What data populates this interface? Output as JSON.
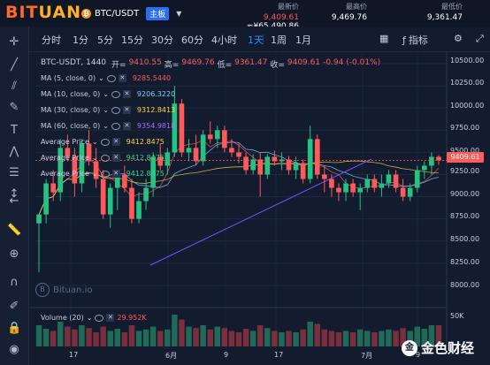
{
  "brand": {
    "logo_part1": "BIT",
    "logo_part2": "UAN"
  },
  "market": {
    "pair": "BTC/USDT",
    "badge": "主板",
    "coin_letter": "₿"
  },
  "stats": [
    {
      "label": "最新价",
      "value_main": "9,409.61",
      "value_sub": "≈¥65,490.86"
    },
    {
      "label": "最高价",
      "value": "9,469.76"
    },
    {
      "label": "最低价",
      "value": "9,361.47"
    }
  ],
  "timeframes": [
    "分时",
    "1分",
    "5分",
    "15分",
    "30分",
    "60分",
    "4小时",
    "1天",
    "1周",
    "1月"
  ],
  "active_timeframe": "1天",
  "toolbar_right": {
    "indicator_label": "指标"
  },
  "chart_header": {
    "symbol": "BTC-USDT, 1440",
    "open_label": "开=",
    "open": "9410.55",
    "high_label": "高=",
    "high": "9469.76",
    "low_label": "低=",
    "low": "9361.47",
    "close_label": "收=",
    "close": "9409.61",
    "change": "-0.94 (-0.01%)"
  },
  "indicators": [
    {
      "label": "MA (5, close, 0)",
      "value": "9285.5440",
      "color": "#ff5a5a"
    },
    {
      "label": "MA (10, close, 0)",
      "value": "9206.3220",
      "color": "#7fd0ff"
    },
    {
      "label": "MA (30, close, 0)",
      "value": "9312.8413",
      "color": "#ffd040"
    },
    {
      "label": "MA (60, close, 0)",
      "value": "9354.9818",
      "color": "#a070ff"
    },
    {
      "label": "Average Price",
      "value": "9412.8475",
      "color": "#ffd040"
    },
    {
      "label": "Average Price",
      "value": "9412.8475",
      "color": "#39d48a"
    },
    {
      "label": "Average Price",
      "value": "9412.8475",
      "color": "#39d48a"
    }
  ],
  "price_axis": [
    "10500.00",
    "10250.00",
    "10000.00",
    "9750.00",
    "9500.00",
    "9250.00",
    "9000.00",
    "8750.00",
    "8500.00",
    "8250.00",
    "8000.00"
  ],
  "current_price_tag": "9409.61",
  "volume": {
    "label": "Volume (20)",
    "value": "29.952K",
    "axis_label": "50K"
  },
  "x_axis": [
    "17",
    "6月",
    "9",
    "17",
    "7月",
    "9"
  ],
  "watermark": "Bituan.io",
  "footer_brand": "金色财经",
  "chart_data": {
    "type": "candlestick",
    "ylim": [
      7880,
      10620
    ],
    "candles": [
      {
        "o": 8700,
        "h": 8800,
        "l": 8150,
        "c": 8800
      },
      {
        "o": 8800,
        "h": 9200,
        "l": 8700,
        "c": 9150
      },
      {
        "o": 9150,
        "h": 9300,
        "l": 8950,
        "c": 9050
      },
      {
        "o": 9050,
        "h": 9650,
        "l": 8950,
        "c": 9550
      },
      {
        "o": 9550,
        "h": 9700,
        "l": 9400,
        "c": 9450
      },
      {
        "o": 9450,
        "h": 9550,
        "l": 9000,
        "c": 9150
      },
      {
        "o": 9150,
        "h": 9650,
        "l": 9050,
        "c": 9600
      },
      {
        "o": 9600,
        "h": 9750,
        "l": 9350,
        "c": 9400
      },
      {
        "o": 9400,
        "h": 9550,
        "l": 9100,
        "c": 9200
      },
      {
        "o": 9200,
        "h": 9300,
        "l": 8750,
        "c": 8800
      },
      {
        "o": 8800,
        "h": 9150,
        "l": 8650,
        "c": 9100
      },
      {
        "o": 9100,
        "h": 9300,
        "l": 8850,
        "c": 9250
      },
      {
        "o": 9250,
        "h": 9350,
        "l": 9050,
        "c": 9100
      },
      {
        "o": 9100,
        "h": 9200,
        "l": 8700,
        "c": 8750
      },
      {
        "o": 8750,
        "h": 9050,
        "l": 8700,
        "c": 8950
      },
      {
        "o": 8950,
        "h": 9200,
        "l": 8850,
        "c": 9100
      },
      {
        "o": 9100,
        "h": 9500,
        "l": 9000,
        "c": 9450
      },
      {
        "o": 9450,
        "h": 9600,
        "l": 9300,
        "c": 9350
      },
      {
        "o": 9350,
        "h": 9550,
        "l": 9250,
        "c": 9500
      },
      {
        "o": 9500,
        "h": 10250,
        "l": 9450,
        "c": 10050
      },
      {
        "o": 10050,
        "h": 10100,
        "l": 9450,
        "c": 9500
      },
      {
        "o": 9500,
        "h": 9650,
        "l": 9400,
        "c": 9550
      },
      {
        "o": 9550,
        "h": 9700,
        "l": 9350,
        "c": 9400
      },
      {
        "o": 9400,
        "h": 9750,
        "l": 9350,
        "c": 9700
      },
      {
        "o": 9700,
        "h": 9850,
        "l": 9600,
        "c": 9650
      },
      {
        "o": 9650,
        "h": 9800,
        "l": 9550,
        "c": 9750
      },
      {
        "o": 9750,
        "h": 9800,
        "l": 9500,
        "c": 9550
      },
      {
        "o": 9550,
        "h": 9650,
        "l": 9450,
        "c": 9500
      },
      {
        "o": 9500,
        "h": 9600,
        "l": 9380,
        "c": 9450
      },
      {
        "o": 9450,
        "h": 9500,
        "l": 9250,
        "c": 9300
      },
      {
        "o": 9300,
        "h": 9480,
        "l": 9250,
        "c": 9420
      },
      {
        "o": 9420,
        "h": 9500,
        "l": 9000,
        "c": 9250
      },
      {
        "o": 9250,
        "h": 9480,
        "l": 9200,
        "c": 9450
      },
      {
        "o": 9450,
        "h": 9520,
        "l": 9350,
        "c": 9400
      },
      {
        "o": 9400,
        "h": 9500,
        "l": 9300,
        "c": 9420
      },
      {
        "o": 9420,
        "h": 9460,
        "l": 9250,
        "c": 9300
      },
      {
        "o": 9300,
        "h": 9450,
        "l": 9200,
        "c": 9380
      },
      {
        "o": 9380,
        "h": 9420,
        "l": 9150,
        "c": 9200
      },
      {
        "o": 9200,
        "h": 9800,
        "l": 9150,
        "c": 9650
      },
      {
        "o": 9650,
        "h": 9700,
        "l": 9200,
        "c": 9250
      },
      {
        "o": 9250,
        "h": 9350,
        "l": 9050,
        "c": 9200
      },
      {
        "o": 9200,
        "h": 9250,
        "l": 9000,
        "c": 9100
      },
      {
        "o": 9100,
        "h": 9150,
        "l": 8950,
        "c": 9050
      },
      {
        "o": 9050,
        "h": 9200,
        "l": 8950,
        "c": 9150
      },
      {
        "o": 9150,
        "h": 9200,
        "l": 9000,
        "c": 9050
      },
      {
        "o": 9050,
        "h": 9150,
        "l": 8850,
        "c": 9100
      },
      {
        "o": 9100,
        "h": 9250,
        "l": 9050,
        "c": 9200
      },
      {
        "o": 9200,
        "h": 9250,
        "l": 9050,
        "c": 9100
      },
      {
        "o": 9100,
        "h": 9250,
        "l": 9000,
        "c": 9150
      },
      {
        "o": 9150,
        "h": 9300,
        "l": 9100,
        "c": 9250
      },
      {
        "o": 9250,
        "h": 9300,
        "l": 9050,
        "c": 9100
      },
      {
        "o": 9100,
        "h": 9200,
        "l": 8950,
        "c": 9000
      },
      {
        "o": 9000,
        "h": 9150,
        "l": 8950,
        "c": 9100
      },
      {
        "o": 9100,
        "h": 9350,
        "l": 9050,
        "c": 9300
      },
      {
        "o": 9300,
        "h": 9400,
        "l": 9200,
        "c": 9350
      },
      {
        "o": 9350,
        "h": 9500,
        "l": 9250,
        "c": 9450
      },
      {
        "o": 9450,
        "h": 9470,
        "l": 9360,
        "c": 9410
      }
    ],
    "volumes": [
      30,
      25,
      22,
      35,
      28,
      24,
      30,
      26,
      20,
      28,
      22,
      25,
      20,
      30,
      22,
      24,
      28,
      22,
      24,
      45,
      38,
      28,
      26,
      30,
      24,
      28,
      26,
      22,
      20,
      25,
      22,
      30,
      26,
      22,
      20,
      22,
      20,
      24,
      35,
      32,
      24,
      22,
      20,
      22,
      20,
      24,
      22,
      20,
      22,
      24,
      22,
      26,
      22,
      28,
      25,
      30,
      30
    ]
  }
}
